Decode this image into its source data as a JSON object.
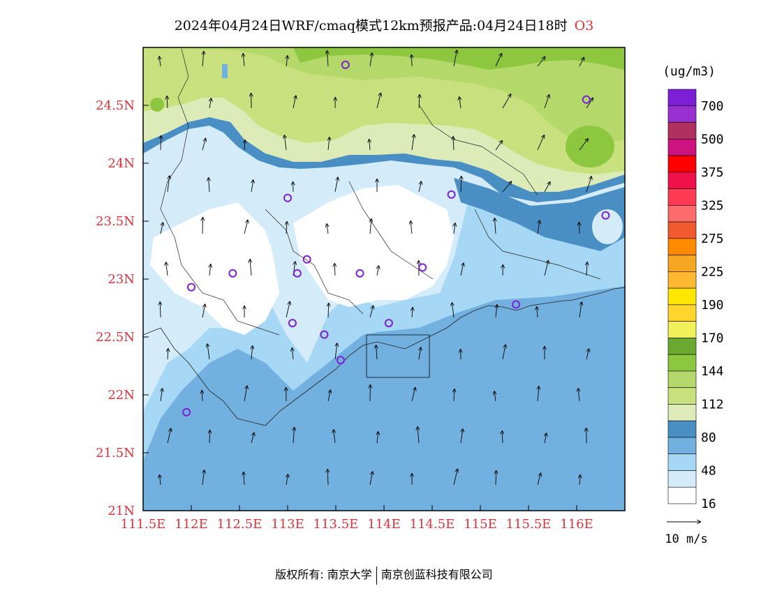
{
  "title": {
    "main": "2024年04月24日WRF/cmaq模式12km预报产品:04月24日18时",
    "species": "O3"
  },
  "axes": {
    "x_ticks": [
      "111.5E",
      "112E",
      "112.5E",
      "113E",
      "113.5E",
      "114E",
      "114.5E",
      "115E",
      "115.5E",
      "116E"
    ],
    "x_values": [
      111.5,
      112,
      112.5,
      113,
      113.5,
      114,
      114.5,
      115,
      115.5,
      116
    ],
    "y_ticks": [
      "21N",
      "21.5N",
      "22N",
      "22.5N",
      "23N",
      "23.5N",
      "24N",
      "24.5N"
    ],
    "y_values": [
      21,
      21.5,
      22,
      22.5,
      23,
      23.5,
      24,
      24.5
    ],
    "lon_range": [
      111.5,
      116.5
    ],
    "lat_range": [
      21,
      25
    ],
    "tick_color": "#e0303a"
  },
  "legend": {
    "unit": "(ug/m3)",
    "levels": [
      "700",
      "500",
      "375",
      "325",
      "275",
      "225",
      "190",
      "170",
      "144",
      "112",
      "80",
      "48",
      "16"
    ],
    "colors": [
      "#7c1fd6",
      "#9b30d0",
      "#b0305f",
      "#cc1380",
      "#ff0000",
      "#f0104a",
      "#ff3a55",
      "#ff6b6b",
      "#f05a2e",
      "#ff8a00",
      "#f5a623",
      "#ffb830",
      "#ffe600",
      "#ffd52e",
      "#f2f05a",
      "#6aa82f",
      "#8dc63f",
      "#b4d86a",
      "#c8e07d",
      "#dcebb8",
      "#4a8fc4",
      "#72b1df",
      "#a6d8f5",
      "#d4ecfa",
      "#ffffff"
    ]
  },
  "wind_reference": {
    "label": "10 m/s"
  },
  "stations": [
    {
      "lon": 113.6,
      "lat": 24.85
    },
    {
      "lon": 116.1,
      "lat": 24.55
    },
    {
      "lon": 113.0,
      "lat": 23.7
    },
    {
      "lon": 114.7,
      "lat": 23.73
    },
    {
      "lon": 116.3,
      "lat": 23.55
    },
    {
      "lon": 113.2,
      "lat": 23.17
    },
    {
      "lon": 112.43,
      "lat": 23.05
    },
    {
      "lon": 113.1,
      "lat": 23.05
    },
    {
      "lon": 113.75,
      "lat": 23.05
    },
    {
      "lon": 114.4,
      "lat": 23.1
    },
    {
      "lon": 112.0,
      "lat": 22.93
    },
    {
      "lon": 115.37,
      "lat": 22.78
    },
    {
      "lon": 113.05,
      "lat": 22.62
    },
    {
      "lon": 113.38,
      "lat": 22.52
    },
    {
      "lon": 114.05,
      "lat": 22.62
    },
    {
      "lon": 113.55,
      "lat": 22.3
    },
    {
      "lon": 111.95,
      "lat": 21.85
    }
  ],
  "footer": {
    "left": "版权所有: 南京大学",
    "right": "南京创蓝科技有限公司"
  }
}
